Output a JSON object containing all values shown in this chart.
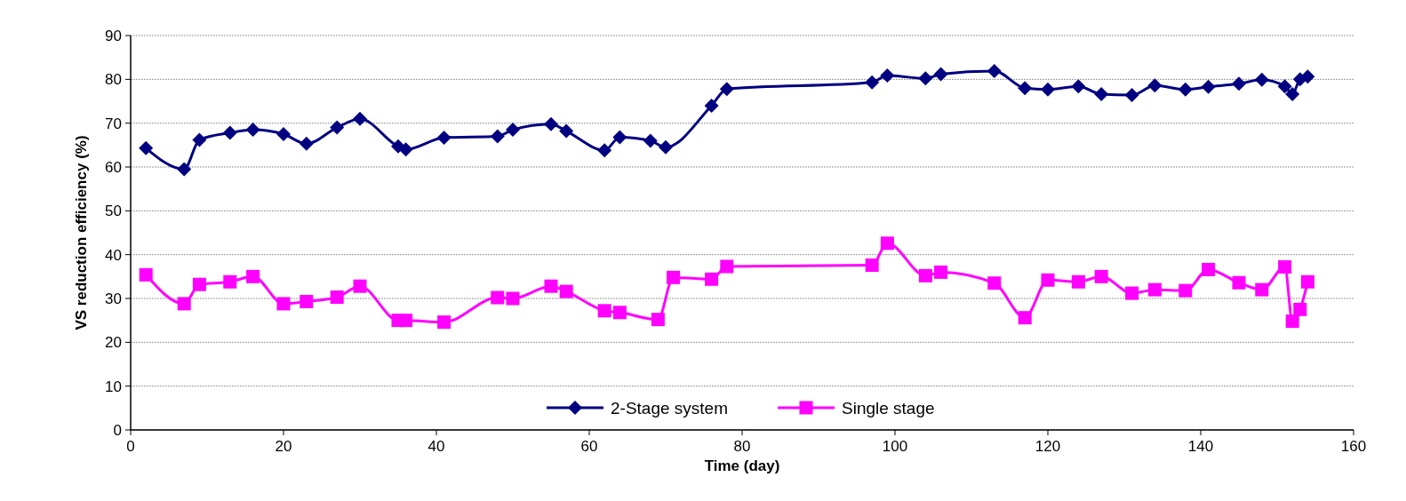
{
  "chart_data": {
    "type": "line",
    "xlabel": "Time (day)",
    "ylabel": "VS reduction efficiency (%)",
    "xlim": [
      0,
      160
    ],
    "xticks": [
      0,
      20,
      40,
      60,
      80,
      100,
      120,
      140,
      160
    ],
    "ylim": [
      0,
      90
    ],
    "yticks": [
      0,
      10,
      20,
      30,
      40,
      50,
      60,
      70,
      80,
      90
    ],
    "grid": "y",
    "legend": "bottom",
    "series": [
      {
        "name": "2-Stage system",
        "color": "#000080",
        "marker": "diamond",
        "x": [
          2,
          7,
          9,
          13,
          16,
          20,
          23,
          27,
          30,
          35,
          36,
          41,
          48,
          50,
          55,
          57,
          62,
          64,
          68,
          70,
          76,
          78,
          97,
          99,
          104,
          106,
          113,
          117,
          120,
          124,
          127,
          131,
          134,
          138,
          141,
          145,
          148,
          151,
          152,
          153,
          154
        ],
        "values": [
          64.3,
          59.5,
          66.2,
          67.8,
          68.5,
          67.5,
          65.3,
          69,
          71,
          64.7,
          64,
          66.7,
          67,
          68.5,
          69.8,
          68.2,
          63.8,
          66.8,
          66,
          64.5,
          74,
          77.8,
          79.3,
          80.9,
          80.2,
          81.2,
          81.9,
          78,
          77.7,
          78.4,
          76.6,
          76.4,
          78.6,
          77.7,
          78.3,
          79,
          79.9,
          78.4,
          76.6,
          80,
          80.6
        ]
      },
      {
        "name": "Single stage",
        "color": "#ff00ff",
        "marker": "square",
        "x": [
          2,
          7,
          9,
          13,
          16,
          20,
          23,
          27,
          30,
          35,
          36,
          41,
          48,
          50,
          55,
          57,
          62,
          64,
          69,
          71,
          76,
          78,
          97,
          99,
          104,
          106,
          113,
          117,
          120,
          124,
          127,
          131,
          134,
          138,
          141,
          145,
          148,
          151,
          152,
          153,
          154
        ],
        "values": [
          35.4,
          28.8,
          33.2,
          33.8,
          35,
          28.8,
          29.3,
          30.3,
          32.8,
          25,
          25,
          24.6,
          30.2,
          30,
          32.8,
          31.6,
          27.2,
          26.8,
          25.2,
          34.8,
          34.4,
          37.3,
          37.6,
          42.6,
          35.2,
          36,
          33.5,
          25.6,
          34.2,
          33.8,
          35,
          31.2,
          32,
          31.8,
          36.6,
          33.6,
          32,
          37.2,
          24.8,
          27.5,
          33.8
        ]
      }
    ]
  }
}
